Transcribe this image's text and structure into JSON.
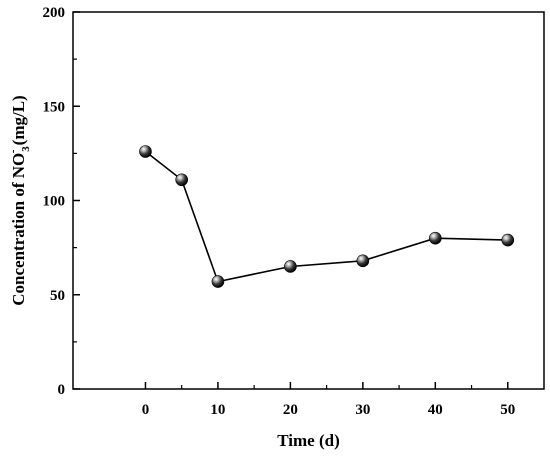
{
  "chart_data": {
    "type": "line",
    "title": "",
    "xlabel": "Time (d)",
    "ylabel": {
      "prefix": "Concentration of NO",
      "subscript": "3",
      "superscript": "-",
      "suffix": " (mg/L)"
    },
    "xlim": [
      -10,
      55
    ],
    "ylim": [
      0,
      200
    ],
    "xticks": [
      0,
      10,
      20,
      30,
      40,
      50
    ],
    "yticks": [
      0,
      50,
      100,
      150,
      200
    ],
    "minor_xticks": [
      5,
      15,
      25,
      35,
      45
    ],
    "minor_yticks": [
      25,
      75,
      125,
      175
    ],
    "grid": false,
    "legend": "none",
    "series": [
      {
        "x": [
          0,
          5,
          10,
          20,
          30,
          40,
          50
        ],
        "y": [
          126,
          111,
          57,
          65,
          68,
          80,
          79
        ],
        "marker": "sphere",
        "color": "#000000"
      }
    ]
  }
}
